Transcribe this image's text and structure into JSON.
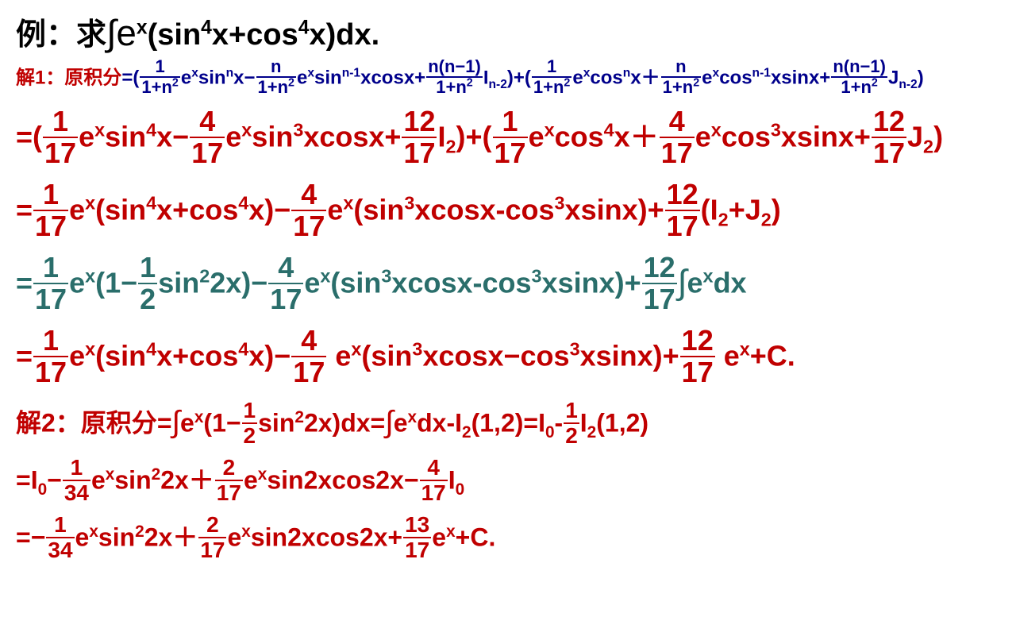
{
  "colors": {
    "black": "#000000",
    "blue": "#00008b",
    "red": "#c00000",
    "teal": "#2a6e6b",
    "bg": "#ffffff"
  },
  "fonts": {
    "family": "Microsoft YaHei / SimHei / Arial",
    "weight": "bold",
    "title_size": 38,
    "formula_size": 24,
    "big_size": 36,
    "med_size": 32
  },
  "title": {
    "prefix": "例：求",
    "integral": "∫e",
    "exp": "x",
    "body_open": "(sin",
    "p4a": "4",
    "mid": "x+cos",
    "p4b": "4",
    "body_close": "x)dx."
  },
  "sol1_label": "解1：原积分",
  "formula": {
    "eq": "=(",
    "f1_num": "1",
    "f1_den": "1+n",
    "f1_den_exp": "2",
    "t1a": "e",
    "t1a_exp": "x",
    "t1b": "sin",
    "t1b_exp": "n",
    "t1c": "x",
    "minus": "−",
    "f2_num": "n",
    "f2_den": "1+n",
    "f2_den_exp": "2",
    "t2a": "e",
    "t2a_exp": "x",
    "t2b": "sin",
    "t2b_exp": "n-1",
    "t2c": "xcosx+",
    "f3_num_a": "n(n−1)",
    "f3_den": "1+n",
    "f3_den_exp": "2",
    "t3": "I",
    "t3_sub": "n-2",
    "t3_close": ")+(",
    "f4_num": "1",
    "f4_den": "1+n",
    "f4_den_exp": "2",
    "t4a": "e",
    "t4a_exp": "x",
    "t4b": "cos",
    "t4b_exp": "n",
    "t4c": "x",
    "plus": "＋",
    "f5_num": "n",
    "f5_den": "1+n",
    "f5_den_exp": "2",
    "t5a": "e",
    "t5a_exp": "x",
    "t5b": "cos",
    "t5b_exp": "n-1",
    "t5c": "xsinx+",
    "f6_num_a": "n(n−1)",
    "f6_den": "1+n",
    "f6_den_exp": "2",
    "t6": "J",
    "t6_sub": "n-2",
    "t6_close": ")"
  },
  "line3": {
    "pre": "=(",
    "f1n": "1",
    "f1d": "17",
    "t1": "e",
    "t1e": "x",
    "t1b": "sin",
    "t1be": "4",
    "t1c": "x",
    "m": "−",
    "f2n": "4",
    "f2d": "17",
    "t2": "e",
    "t2e": "x",
    "t2b": "sin",
    "t2be": "3",
    "t2c": "xcosx+",
    "f3n": "12",
    "f3d": "17",
    "t3": "I",
    "t3s": "2",
    "mid": ")+(",
    "f4n": "1",
    "f4d": "17",
    "t4": "e",
    "t4e": "x",
    "t4b": "cos",
    "t4be": "4",
    "t4c": "x",
    "p": "＋",
    "f5n": "4",
    "f5d": "17",
    "t5": "e",
    "t5e": "x",
    "t5b": "cos",
    "t5be": "3",
    "t5c": "xsinx+",
    "f6n": "12",
    "f6d": "17",
    "t6": "J",
    "t6s": "2",
    "end": ")"
  },
  "line4": {
    "pre": "=",
    "f1n": "1",
    "f1d": "17",
    "t1": "e",
    "t1e": "x",
    "g1": "(sin",
    "g1e": "4",
    "g1m": "x+cos",
    "g1e2": "4",
    "g1c": "x)",
    "m": "−",
    "f2n": "4",
    "f2d": "17",
    "t2": "e",
    "t2e": "x",
    "g2": "(sin",
    "g2e": "3",
    "g2m": "xcosx-cos",
    "g2e2": "3",
    "g2c": "xsinx)+",
    "f3n": "12",
    "f3d": "17",
    "t3": "(I",
    "t3s": "2",
    "t3p": "+J",
    "t3s2": "2",
    "end": ")"
  },
  "line5": {
    "pre": "=",
    "f1n": "1",
    "f1d": "17",
    "t1": "e",
    "t1e": "x",
    "g1": "(1",
    "m1": "−",
    "fhn": "1",
    "fhd": "2",
    "gh": "sin",
    "ghe": "2",
    "ghc": "2x)",
    "m2": "−",
    "f2n": "4",
    "f2d": "17",
    "t2": "e",
    "t2e": "x",
    "g2": "(sin",
    "g2e": "3",
    "g2m": "xcosx-cos",
    "g2e2": "3",
    "g2c": "xsinx)+",
    "f3n": "12",
    "f3d": "17",
    "int": "∫",
    "t3": "e",
    "t3e": "x",
    "end": "dx"
  },
  "line6": {
    "pre": "=",
    "f1n": "1",
    "f1d": "17",
    "t1": "e",
    "t1e": "x",
    "g1": "(sin",
    "g1e": "4",
    "g1m": "x+cos",
    "g1e2": "4",
    "g1c": "x)",
    "m": "−",
    "f2n": "4",
    "f2d": "17",
    "sp1": " ",
    "t2": "e",
    "t2e": "x",
    "g2": "(sin",
    "g2e": "3",
    "g2m": "xcosx−cos",
    "g2e2": "3",
    "g2c": "xsinx)+",
    "f3n": "12",
    "f3d": "17",
    "sp2": " ",
    "t3": "e",
    "t3e": "x",
    "end": "+C."
  },
  "sol2_label": "解2：原积分",
  "line7": {
    "pre": "=",
    "int1": "∫",
    "t1": "e",
    "t1e": "x",
    "g1": "(1",
    "m1": "−",
    "fhn": "1",
    "fhd": "2",
    "gh": "sin",
    "ghe": "2",
    "ghc": "2x)dx=",
    "int2": "∫",
    "t2": "e",
    "t2e": "x",
    "t2c": "dx-I",
    "t2s": "2",
    "t2arg": "(1,2)=I",
    "t2s0": "0",
    "t2m": "-",
    "f3n": "1",
    "f3d": "2",
    "t3": "I",
    "t3s": "2",
    "end": "(1,2)"
  },
  "line8": {
    "pre": "=I",
    "pres": "0",
    "m1": "−",
    "f1n": "1",
    "f1d": "34",
    "t1": "e",
    "t1e": "x",
    "t1b": "sin",
    "t1be": "2",
    "t1c": "2x",
    "p": "＋",
    "f2n": "2",
    "f2d": "17",
    "t2": "e",
    "t2e": "x",
    "t2b": "sin2xcos2x",
    "m2": "−",
    "f3n": "4",
    "f3d": "17",
    "t3": "I",
    "t3s": "0"
  },
  "line9": {
    "pre": "=",
    "m1": "−",
    "f1n": "1",
    "f1d": "34",
    "t1": "e",
    "t1e": "x",
    "t1b": "sin",
    "t1be": "2",
    "t1c": "2x",
    "p": "＋",
    "f2n": "2",
    "f2d": "17",
    "t2": "e",
    "t2e": "x",
    "t2b": "sin2xcos2x+",
    "f3n": "13",
    "f3d": "17",
    "t3": "e",
    "t3e": "x",
    "end": "+C."
  }
}
